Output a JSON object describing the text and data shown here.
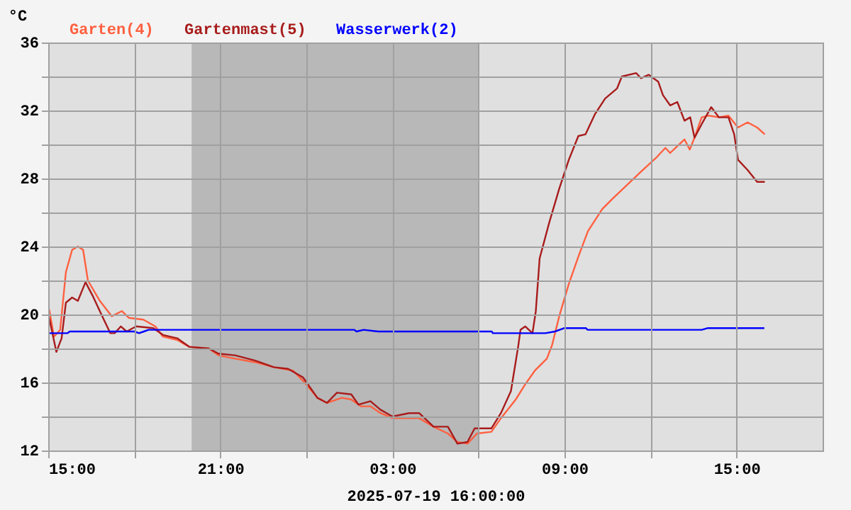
{
  "chart_data": {
    "type": "line",
    "xlabel": "2025-07-19 16:00:00",
    "ylabel": "°C",
    "xlim": [
      "2025-07-19T15:00",
      "2025-07-20T18:00"
    ],
    "ylim": [
      12,
      36
    ],
    "xticks": [
      {
        "value": "2025-07-19T15:00",
        "label": "15:00"
      },
      {
        "value": "2025-07-19T18:00",
        "label": null
      },
      {
        "value": "2025-07-19T21:00",
        "label": "21:00"
      },
      {
        "value": "2025-07-20T00:00",
        "label": null
      },
      {
        "value": "2025-07-20T03:00",
        "label": "03:00"
      },
      {
        "value": "2025-07-20T06:00",
        "label": null
      },
      {
        "value": "2025-07-20T09:00",
        "label": "09:00"
      },
      {
        "value": "2025-07-20T12:00",
        "label": null
      },
      {
        "value": "2025-07-20T15:00",
        "label": "15:00"
      }
    ],
    "yticks": [
      12,
      {
        "value": 14,
        "label": null
      },
      16,
      {
        "value": 18,
        "label": null
      },
      20,
      {
        "value": 22,
        "label": null
      },
      24,
      {
        "value": 26,
        "label": null
      },
      28,
      {
        "value": 30,
        "label": null
      },
      32,
      {
        "value": 34,
        "label": null
      },
      36
    ],
    "grid": true,
    "marker": "none",
    "line_style": "solid",
    "bands": [
      {
        "axis": "x",
        "from": "2025-07-19T20:00",
        "to": "2025-07-20T06:00",
        "label": null,
        "color": "#b8b8b8"
      }
    ],
    "series": [
      {
        "name": "Garten(4)",
        "color": "#ff6040",
        "x": [
          "2025-07-19T15:02",
          "2025-07-19T15:12",
          "2025-07-19T15:25",
          "2025-07-19T15:37",
          "2025-07-19T15:50",
          "2025-07-19T16:02",
          "2025-07-19T16:13",
          "2025-07-19T16:23",
          "2025-07-19T16:48",
          "2025-07-19T17:13",
          "2025-07-19T17:34",
          "2025-07-19T17:49",
          "2025-07-19T18:19",
          "2025-07-19T18:44",
          "2025-07-19T19:00",
          "2025-07-19T19:30",
          "2025-07-19T19:55",
          "2025-07-19T20:36",
          "2025-07-19T20:56",
          "2025-07-19T21:31",
          "2025-07-19T22:12",
          "2025-07-19T22:52",
          "2025-07-19T23:32",
          "2025-07-19T23:53",
          "2025-07-20T00:23",
          "2025-07-20T00:43",
          "2025-07-20T01:14",
          "2025-07-20T01:34",
          "2025-07-20T01:54",
          "2025-07-20T02:14",
          "2025-07-20T02:35",
          "2025-07-20T03:00",
          "2025-07-20T03:30",
          "2025-07-20T03:56",
          "2025-07-20T04:26",
          "2025-07-20T04:56",
          "2025-07-20T05:16",
          "2025-07-20T05:37",
          "2025-07-20T05:57",
          "2025-07-20T06:27",
          "2025-07-20T06:47",
          "2025-07-20T07:18",
          "2025-07-20T07:38",
          "2025-07-20T07:58",
          "2025-07-20T08:23",
          "2025-07-20T08:34",
          "2025-07-20T08:49",
          "2025-07-20T09:09",
          "2025-07-20T09:29",
          "2025-07-20T09:49",
          "2025-07-20T10:19",
          "2025-07-20T10:40",
          "2025-07-20T11:10",
          "2025-07-20T11:40",
          "2025-07-20T12:11",
          "2025-07-20T12:31",
          "2025-07-20T12:41",
          "2025-07-20T12:56",
          "2025-07-20T13:11",
          "2025-07-20T13:22",
          "2025-07-20T13:32",
          "2025-07-20T13:47",
          "2025-07-20T14:02",
          "2025-07-20T14:23",
          "2025-07-20T14:43",
          "2025-07-20T15:03",
          "2025-07-20T15:23",
          "2025-07-20T15:43",
          "2025-07-20T15:59"
        ],
        "values": [
          20.3,
          18.7,
          19.1,
          22.5,
          23.8,
          24.0,
          23.8,
          22.0,
          20.8,
          19.9,
          20.2,
          19.8,
          19.7,
          19.3,
          18.7,
          18.5,
          18.1,
          18.0,
          17.6,
          17.4,
          17.2,
          16.9,
          16.7,
          16.1,
          15.1,
          14.8,
          15.1,
          15.0,
          14.6,
          14.6,
          14.2,
          13.9,
          13.9,
          13.9,
          13.4,
          13.0,
          12.5,
          12.4,
          13.0,
          13.1,
          13.9,
          15.0,
          15.9,
          16.7,
          17.4,
          18.2,
          19.9,
          21.8,
          23.4,
          24.9,
          26.2,
          26.8,
          27.6,
          28.4,
          29.2,
          29.8,
          29.5,
          29.9,
          30.3,
          29.7,
          30.4,
          31.6,
          31.7,
          31.6,
          31.7,
          31.0,
          31.3,
          31.0,
          30.6
        ]
      },
      {
        "name": "Gartenmast(5)",
        "color": "#a81c1c",
        "x": [
          "2025-07-19T15:02",
          "2025-07-19T15:17",
          "2025-07-19T15:28",
          "2025-07-19T15:37",
          "2025-07-19T15:50",
          "2025-07-19T16:02",
          "2025-07-19T16:18",
          "2025-07-19T16:33",
          "2025-07-19T16:53",
          "2025-07-19T17:10",
          "2025-07-19T17:19",
          "2025-07-19T17:32",
          "2025-07-19T17:44",
          "2025-07-19T18:04",
          "2025-07-19T18:40",
          "2025-07-19T19:00",
          "2025-07-19T19:30",
          "2025-07-19T19:55",
          "2025-07-19T20:36",
          "2025-07-19T20:56",
          "2025-07-19T21:31",
          "2025-07-19T22:12",
          "2025-07-19T22:52",
          "2025-07-19T23:22",
          "2025-07-19T23:53",
          "2025-07-20T00:23",
          "2025-07-20T00:43",
          "2025-07-20T01:04",
          "2025-07-20T01:34",
          "2025-07-20T01:49",
          "2025-07-20T02:14",
          "2025-07-20T02:35",
          "2025-07-20T03:00",
          "2025-07-20T03:35",
          "2025-07-20T03:56",
          "2025-07-20T04:26",
          "2025-07-20T04:56",
          "2025-07-20T05:16",
          "2025-07-20T05:37",
          "2025-07-20T05:52",
          "2025-07-20T06:12",
          "2025-07-20T06:27",
          "2025-07-20T06:47",
          "2025-07-20T07:08",
          "2025-07-20T07:23",
          "2025-07-20T07:28",
          "2025-07-20T07:38",
          "2025-07-20T07:53",
          "2025-07-20T08:00",
          "2025-07-20T08:08",
          "2025-07-20T08:28",
          "2025-07-20T08:49",
          "2025-07-20T09:09",
          "2025-07-20T09:29",
          "2025-07-20T09:44",
          "2025-07-20T10:04",
          "2025-07-20T10:25",
          "2025-07-20T10:50",
          "2025-07-20T11:00",
          "2025-07-20T11:30",
          "2025-07-20T11:40",
          "2025-07-20T11:56",
          "2025-07-20T12:16",
          "2025-07-20T12:26",
          "2025-07-20T12:41",
          "2025-07-20T12:56",
          "2025-07-20T13:11",
          "2025-07-20T13:23",
          "2025-07-20T13:32",
          "2025-07-20T13:47",
          "2025-07-20T14:07",
          "2025-07-20T14:23",
          "2025-07-20T14:43",
          "2025-07-20T14:55",
          "2025-07-20T15:03",
          "2025-07-20T15:23",
          "2025-07-20T15:43",
          "2025-07-20T15:59"
        ],
        "values": [
          19.8,
          17.8,
          18.6,
          20.7,
          21.0,
          20.8,
          21.9,
          21.1,
          19.9,
          18.9,
          18.9,
          19.3,
          19.0,
          19.3,
          19.2,
          18.8,
          18.6,
          18.1,
          18.0,
          17.7,
          17.6,
          17.3,
          16.9,
          16.8,
          16.3,
          15.1,
          14.8,
          15.4,
          15.3,
          14.7,
          14.9,
          14.4,
          14.0,
          14.2,
          14.2,
          13.4,
          13.4,
          12.4,
          12.5,
          13.3,
          13.3,
          13.3,
          14.2,
          15.5,
          18.1,
          19.1,
          19.3,
          18.9,
          20.2,
          23.3,
          25.4,
          27.4,
          29.1,
          30.5,
          30.6,
          31.8,
          32.7,
          33.3,
          34.0,
          34.2,
          33.9,
          34.1,
          33.7,
          32.9,
          32.3,
          32.5,
          31.4,
          31.6,
          30.4,
          31.2,
          32.2,
          31.6,
          31.6,
          30.6,
          29.1,
          28.5,
          27.8,
          27.8
        ]
      },
      {
        "name": "Wasserwerk(2)",
        "color": "#0000ff",
        "x": [
          "2025-07-19T15:00",
          "2025-07-19T15:40",
          "2025-07-19T15:45",
          "2025-07-19T18:00",
          "2025-07-19T18:10",
          "2025-07-19T18:20",
          "2025-07-19T18:30",
          "2025-07-20T01:40",
          "2025-07-20T01:45",
          "2025-07-20T02:00",
          "2025-07-20T02:30",
          "2025-07-20T03:00",
          "2025-07-20T03:30",
          "2025-07-20T06:28",
          "2025-07-20T06:30",
          "2025-07-20T08:20",
          "2025-07-20T08:40",
          "2025-07-20T09:00",
          "2025-07-20T09:45",
          "2025-07-20T09:48",
          "2025-07-20T10:50",
          "2025-07-20T11:00",
          "2025-07-20T13:47",
          "2025-07-20T14:00",
          "2025-07-20T15:30",
          "2025-07-20T15:58"
        ],
        "values": [
          18.9,
          18.9,
          19.0,
          19.0,
          18.9,
          19.0,
          19.1,
          19.1,
          19.0,
          19.1,
          19.0,
          19.0,
          19.0,
          19.0,
          18.9,
          18.9,
          19.0,
          19.2,
          19.2,
          19.1,
          19.1,
          19.1,
          19.1,
          19.2,
          19.2,
          19.2
        ]
      }
    ]
  }
}
